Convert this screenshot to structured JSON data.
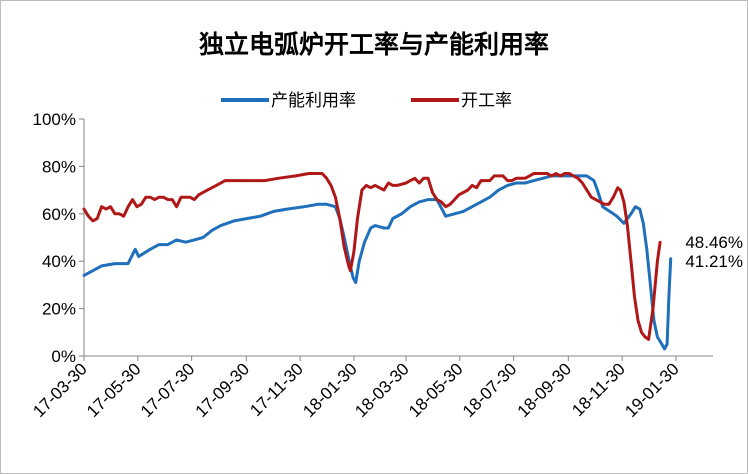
{
  "chart_data": {
    "type": "line",
    "title": "独立电弧炉开工率与产能利用率",
    "xlabel": "",
    "ylabel": "",
    "ylim": [
      0,
      100
    ],
    "yticks": [
      0,
      20,
      40,
      60,
      80,
      100
    ],
    "ytick_labels": [
      "0%",
      "20%",
      "40%",
      "60%",
      "80%",
      "100%"
    ],
    "grid": false,
    "legend_position": "top-center",
    "x_tick_labels": [
      "17-03-30",
      "17-05-30",
      "17-07-30",
      "17-09-30",
      "17-11-30",
      "18-01-30",
      "18-03-30",
      "18-05-30",
      "18-07-30",
      "18-09-30",
      "18-11-30",
      "19-01-30"
    ],
    "x_tick_positions": [
      0,
      61,
      122,
      184,
      245,
      306,
      365,
      426,
      487,
      549,
      610,
      671
    ],
    "x_end": 713,
    "series": [
      {
        "name": "产能利用率",
        "color": "#1f6fba",
        "points": [
          [
            0,
            34
          ],
          [
            10,
            36
          ],
          [
            20,
            38
          ],
          [
            35,
            39
          ],
          [
            50,
            39
          ],
          [
            58,
            45
          ],
          [
            62,
            42
          ],
          [
            75,
            45
          ],
          [
            85,
            47
          ],
          [
            95,
            47
          ],
          [
            105,
            49
          ],
          [
            115,
            48
          ],
          [
            125,
            49
          ],
          [
            135,
            50
          ],
          [
            145,
            53
          ],
          [
            155,
            55
          ],
          [
            170,
            57
          ],
          [
            185,
            58
          ],
          [
            200,
            59
          ],
          [
            215,
            61
          ],
          [
            230,
            62
          ],
          [
            250,
            63
          ],
          [
            265,
            64
          ],
          [
            275,
            64
          ],
          [
            285,
            63
          ],
          [
            290,
            58
          ],
          [
            295,
            50
          ],
          [
            300,
            41
          ],
          [
            305,
            33
          ],
          [
            308,
            31
          ],
          [
            312,
            40
          ],
          [
            318,
            48
          ],
          [
            325,
            54
          ],
          [
            330,
            55
          ],
          [
            340,
            54
          ],
          [
            345,
            54
          ],
          [
            350,
            58
          ],
          [
            360,
            60
          ],
          [
            370,
            63
          ],
          [
            380,
            65
          ],
          [
            390,
            66
          ],
          [
            400,
            66
          ],
          [
            410,
            59
          ],
          [
            420,
            60
          ],
          [
            430,
            61
          ],
          [
            440,
            63
          ],
          [
            450,
            65
          ],
          [
            460,
            67
          ],
          [
            470,
            70
          ],
          [
            480,
            72
          ],
          [
            490,
            73
          ],
          [
            500,
            73
          ],
          [
            510,
            74
          ],
          [
            520,
            75
          ],
          [
            530,
            76
          ],
          [
            540,
            76
          ],
          [
            550,
            76
          ],
          [
            560,
            76
          ],
          [
            570,
            76
          ],
          [
            578,
            74
          ],
          [
            582,
            70
          ],
          [
            588,
            63
          ],
          [
            596,
            61
          ],
          [
            604,
            59
          ],
          [
            612,
            56
          ],
          [
            620,
            60
          ],
          [
            625,
            63
          ],
          [
            630,
            62
          ],
          [
            634,
            56
          ],
          [
            638,
            45
          ],
          [
            642,
            30
          ],
          [
            646,
            15
          ],
          [
            650,
            8
          ],
          [
            655,
            5
          ],
          [
            658,
            3
          ],
          [
            661,
            5
          ],
          [
            663,
            25
          ],
          [
            665,
            41
          ]
        ]
      },
      {
        "name": "开工率",
        "color": "#b01818",
        "points": [
          [
            0,
            62
          ],
          [
            5,
            59
          ],
          [
            10,
            57
          ],
          [
            15,
            58
          ],
          [
            20,
            63
          ],
          [
            25,
            62
          ],
          [
            30,
            63
          ],
          [
            35,
            60
          ],
          [
            40,
            60
          ],
          [
            45,
            59
          ],
          [
            50,
            63
          ],
          [
            55,
            66
          ],
          [
            60,
            63
          ],
          [
            65,
            64
          ],
          [
            70,
            67
          ],
          [
            75,
            67
          ],
          [
            80,
            66
          ],
          [
            85,
            67
          ],
          [
            90,
            67
          ],
          [
            95,
            66
          ],
          [
            100,
            66
          ],
          [
            105,
            63
          ],
          [
            110,
            67
          ],
          [
            115,
            67
          ],
          [
            120,
            67
          ],
          [
            125,
            66
          ],
          [
            130,
            68
          ],
          [
            140,
            70
          ],
          [
            150,
            72
          ],
          [
            160,
            74
          ],
          [
            170,
            74
          ],
          [
            190,
            74
          ],
          [
            205,
            74
          ],
          [
            220,
            75
          ],
          [
            240,
            76
          ],
          [
            255,
            77
          ],
          [
            270,
            77
          ],
          [
            275,
            75
          ],
          [
            280,
            72
          ],
          [
            285,
            67
          ],
          [
            290,
            58
          ],
          [
            295,
            46
          ],
          [
            300,
            38
          ],
          [
            302,
            36
          ],
          [
            306,
            44
          ],
          [
            310,
            58
          ],
          [
            315,
            70
          ],
          [
            320,
            72
          ],
          [
            325,
            71
          ],
          [
            330,
            72
          ],
          [
            335,
            71
          ],
          [
            340,
            70
          ],
          [
            345,
            73
          ],
          [
            350,
            72
          ],
          [
            355,
            72
          ],
          [
            365,
            73
          ],
          [
            370,
            74
          ],
          [
            375,
            75
          ],
          [
            380,
            73
          ],
          [
            385,
            75
          ],
          [
            390,
            75
          ],
          [
            395,
            69
          ],
          [
            400,
            66
          ],
          [
            405,
            65
          ],
          [
            410,
            63
          ],
          [
            415,
            64
          ],
          [
            420,
            66
          ],
          [
            425,
            68
          ],
          [
            430,
            69
          ],
          [
            435,
            70
          ],
          [
            440,
            72
          ],
          [
            445,
            71
          ],
          [
            450,
            74
          ],
          [
            455,
            74
          ],
          [
            460,
            74
          ],
          [
            465,
            76
          ],
          [
            470,
            76
          ],
          [
            475,
            76
          ],
          [
            480,
            74
          ],
          [
            485,
            74
          ],
          [
            490,
            75
          ],
          [
            495,
            75
          ],
          [
            500,
            75
          ],
          [
            505,
            76
          ],
          [
            510,
            77
          ],
          [
            515,
            77
          ],
          [
            520,
            77
          ],
          [
            525,
            77
          ],
          [
            530,
            76
          ],
          [
            535,
            77
          ],
          [
            540,
            76
          ],
          [
            545,
            77
          ],
          [
            550,
            77
          ],
          [
            555,
            76
          ],
          [
            560,
            75
          ],
          [
            565,
            73
          ],
          [
            570,
            70
          ],
          [
            575,
            67
          ],
          [
            580,
            66
          ],
          [
            585,
            65
          ],
          [
            590,
            64
          ],
          [
            595,
            64
          ],
          [
            600,
            67
          ],
          [
            605,
            71
          ],
          [
            608,
            70
          ],
          [
            612,
            65
          ],
          [
            616,
            55
          ],
          [
            620,
            40
          ],
          [
            624,
            25
          ],
          [
            628,
            15
          ],
          [
            632,
            10
          ],
          [
            636,
            8
          ],
          [
            640,
            7
          ],
          [
            645,
            20
          ],
          [
            650,
            40
          ],
          [
            653,
            48
          ]
        ]
      }
    ],
    "annotations": [
      {
        "text": "48.46%",
        "series": "开工率"
      },
      {
        "text": "41.21%",
        "series": "产能利用率"
      }
    ]
  }
}
